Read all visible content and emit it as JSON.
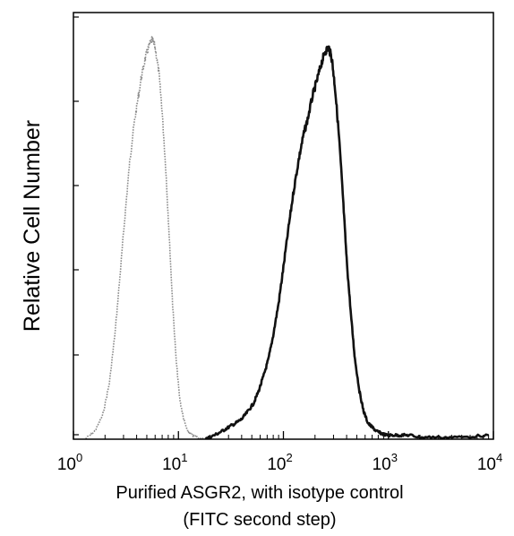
{
  "chart_data": {
    "type": "line",
    "title": "",
    "xlabel": "Purified ASGR2, with isotype control",
    "xlabel_line2": "(FITC second step)",
    "ylabel": "Relative Cell Number",
    "x_scale": "log",
    "xlim": [
      1,
      10000
    ],
    "ylim": [
      0,
      1
    ],
    "grid": false,
    "legend": "none",
    "x_ticks": [
      {
        "base": "10",
        "exp": "0",
        "value": 1
      },
      {
        "base": "10",
        "exp": "1",
        "value": 10
      },
      {
        "base": "10",
        "exp": "2",
        "value": 100
      },
      {
        "base": "10",
        "exp": "3",
        "value": 1000
      },
      {
        "base": "10",
        "exp": "4",
        "value": 10000
      }
    ],
    "series": [
      {
        "style": "dotted-light",
        "color": "#8a8a8a",
        "x": [
          1.3,
          1.6,
          1.9,
          2.2,
          2.5,
          2.8,
          3.1,
          3.4,
          3.7,
          4.0,
          4.4,
          4.8,
          5.2,
          5.6,
          6.0,
          6.5,
          7.0,
          7.6,
          8.2,
          8.8,
          9.5,
          10.3,
          11.2,
          12.2,
          13.5,
          15,
          17,
          20
        ],
        "y": [
          0.0,
          0.02,
          0.06,
          0.14,
          0.27,
          0.42,
          0.56,
          0.68,
          0.77,
          0.83,
          0.9,
          0.95,
          0.98,
          1.0,
          0.98,
          0.92,
          0.82,
          0.67,
          0.5,
          0.34,
          0.2,
          0.1,
          0.05,
          0.02,
          0.01,
          0.005,
          0.0,
          0.0
        ]
      },
      {
        "style": "solid-dark",
        "color": "#111111",
        "x": [
          18,
          22,
          26,
          30,
          35,
          40,
          46,
          52,
          58,
          65,
          72,
          80,
          90,
          100,
          112,
          125,
          140,
          155,
          170,
          190,
          210,
          230,
          250,
          270,
          290,
          310,
          340,
          370,
          400,
          440,
          480,
          530,
          580,
          640,
          700,
          770,
          850,
          950,
          1100,
          1300,
          1600,
          2000,
          3000,
          5000,
          9000
        ],
        "y": [
          0.0,
          0.01,
          0.02,
          0.03,
          0.04,
          0.05,
          0.07,
          0.09,
          0.12,
          0.16,
          0.2,
          0.26,
          0.34,
          0.43,
          0.53,
          0.62,
          0.7,
          0.76,
          0.8,
          0.86,
          0.9,
          0.94,
          0.97,
          0.98,
          0.95,
          0.88,
          0.75,
          0.6,
          0.45,
          0.31,
          0.2,
          0.12,
          0.07,
          0.04,
          0.03,
          0.02,
          0.015,
          0.01,
          0.01,
          0.01,
          0.01,
          0.005,
          0.005,
          0.005,
          0.01
        ]
      }
    ]
  }
}
